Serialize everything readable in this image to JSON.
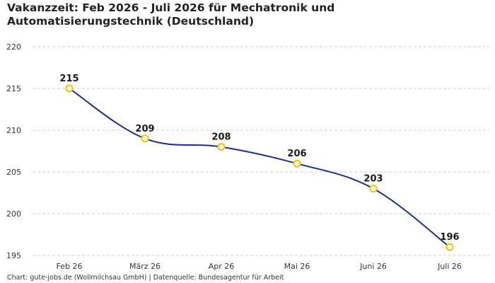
{
  "title": "Vakanzzeit: Feb 2026 - Juli 2026 für Mechatronik und Automatisierungstechnik (Deutschland)",
  "caption": "Chart: gute-jobs.de (Wollmilchsau GmbH) | Datenquelle: Bundesagentur für Arbeit",
  "colors": {
    "line": "#1f2d8a",
    "marker": "#f2c200",
    "grid": "#cccccc"
  },
  "chart_data": {
    "type": "line",
    "title": "Vakanzzeit: Feb 2026 - Juli 2026 für Mechatronik und Automatisierungstechnik (Deutschland)",
    "xlabel": "",
    "ylabel": "",
    "categories": [
      "Feb 26",
      "März 26",
      "Apr 26",
      "Mai 26",
      "Juni 26",
      "Juli 26"
    ],
    "values": [
      215,
      209,
      208,
      206,
      203,
      196
    ],
    "ylim": [
      195,
      220
    ],
    "yticks": [
      195,
      200,
      205,
      210,
      215,
      220
    ],
    "grid": true,
    "legend": "none"
  }
}
